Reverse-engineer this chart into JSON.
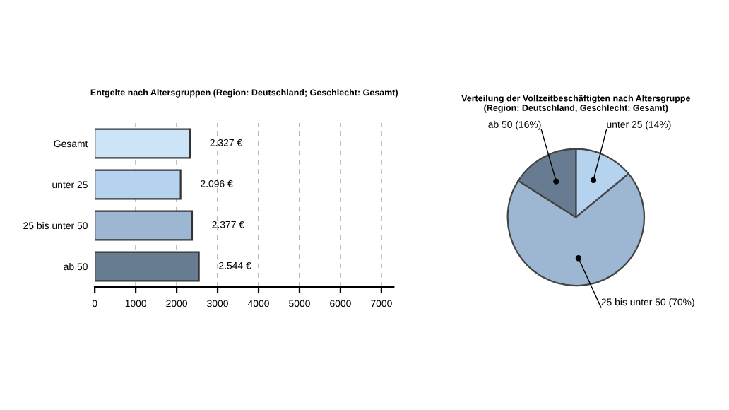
{
  "chart_data": [
    {
      "type": "bar",
      "orientation": "horizontal",
      "title": "Entgelte nach Altersgruppen (Region: Deutschland; Geschlecht: Gesamt)",
      "categories": [
        "Gesamt",
        "unter 25",
        "25 bis unter 50",
        "ab 50"
      ],
      "values": [
        2327,
        2096,
        2377,
        2544
      ],
      "value_labels": [
        "2.327 €",
        "2.096 €",
        "2.377 €",
        "2.544 €"
      ],
      "colors": [
        "#cce4f7",
        "#b5d3ee",
        "#9db7d2",
        "#687c91"
      ],
      "xlim": [
        0,
        7300
      ],
      "xticks": [
        0,
        1000,
        2000,
        3000,
        4000,
        5000,
        6000,
        7000
      ],
      "grid": "x"
    },
    {
      "type": "pie",
      "title": "Verteilung der Vollzeitbeschäftigten nach Altersgruppe\n(Region: Deutschland, Geschlecht: Gesamt)",
      "categories": [
        "unter 25 (14%)",
        "25 bis unter 50 (70%)",
        "ab 50 (16%)"
      ],
      "values": [
        14,
        70,
        16
      ],
      "colors": [
        "#b5d3ee",
        "#9db7d2",
        "#687c91"
      ]
    }
  ]
}
